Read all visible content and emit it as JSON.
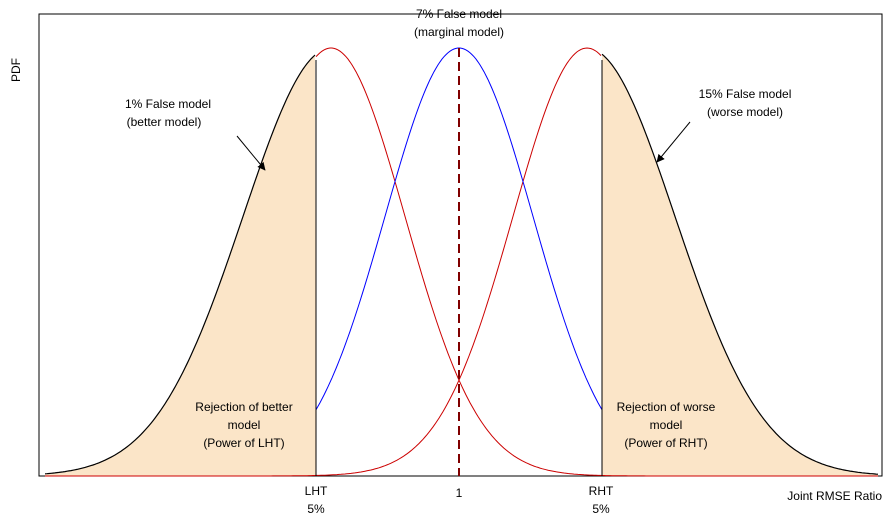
{
  "title": {
    "line1": "7% False model",
    "line2": "(marginal model)"
  },
  "y_axis_label": "PDF",
  "x_axis_label": "Joint RMSE Ratio",
  "x_ticks": {
    "lht": "LHT",
    "lht_pct": "5%",
    "center": "1",
    "rht": "RHT",
    "rht_pct": "5%"
  },
  "annotations": {
    "better_line1": "1% False model",
    "better_line2": "(better model)",
    "worse_line1": "15% False model",
    "worse_line2": "(worse model)"
  },
  "regions": {
    "left_line1": "Rejection of better",
    "left_line2": "model",
    "left_line3": "(Power of LHT)",
    "right_line1": "Rejection of worse",
    "right_line2": "model",
    "right_line3": "(Power of RHT)"
  },
  "colors": {
    "marginal_curve": "#0000ff",
    "null_curves": "#cc0000",
    "alt_curves": "#000000",
    "rejection_fill": "#fbe5c8",
    "threshold_line": "#800000"
  }
}
